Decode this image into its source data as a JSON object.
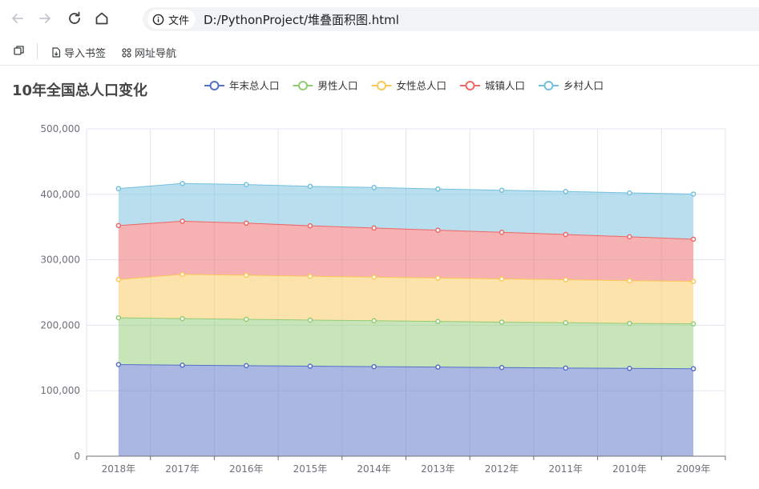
{
  "browser": {
    "info_chip_label": "文件",
    "url": "D:/PythonProject/堆叠面积图.html"
  },
  "bookmarks": {
    "import_label": "导入书签",
    "nav_label": "网址导航"
  },
  "chart_data": {
    "type": "area",
    "stacked": true,
    "title": "10年全国总人口变化",
    "categories": [
      "2018年",
      "2017年",
      "2016年",
      "2015年",
      "2014年",
      "2013年",
      "2012年",
      "2011年",
      "2010年",
      "2009年"
    ],
    "ylim": [
      0,
      500000
    ],
    "yticks": [
      0,
      100000,
      200000,
      300000,
      400000,
      500000
    ],
    "ytick_labels": [
      "0",
      "100,000",
      "200,000",
      "300,000",
      "400,000",
      "500,000"
    ],
    "grid": true,
    "legend_position": "top",
    "series": [
      {
        "name": "年末总人口",
        "color": "#5470c6",
        "values": [
          140000,
          139000,
          138300,
          137500,
          136800,
          136100,
          135400,
          134700,
          134100,
          133500
        ]
      },
      {
        "name": "男性人口",
        "color": "#91cc75",
        "values": [
          71400,
          71100,
          70800,
          70400,
          70100,
          69700,
          69400,
          69100,
          68700,
          68600
        ]
      },
      {
        "name": "女性总人口",
        "color": "#fac858",
        "values": [
          58500,
          67500,
          67300,
          66900,
          66700,
          66300,
          66000,
          65700,
          65300,
          64900
        ]
      },
      {
        "name": "城镇人口",
        "color": "#ee6666",
        "values": [
          82400,
          81300,
          79600,
          77100,
          74900,
          73100,
          71200,
          69100,
          67000,
          64500
        ]
      },
      {
        "name": "乡村人口",
        "color": "#73c0de",
        "values": [
          56400,
          57700,
          58900,
          60300,
          61900,
          62900,
          64200,
          65700,
          67100,
          68900
        ]
      }
    ]
  }
}
